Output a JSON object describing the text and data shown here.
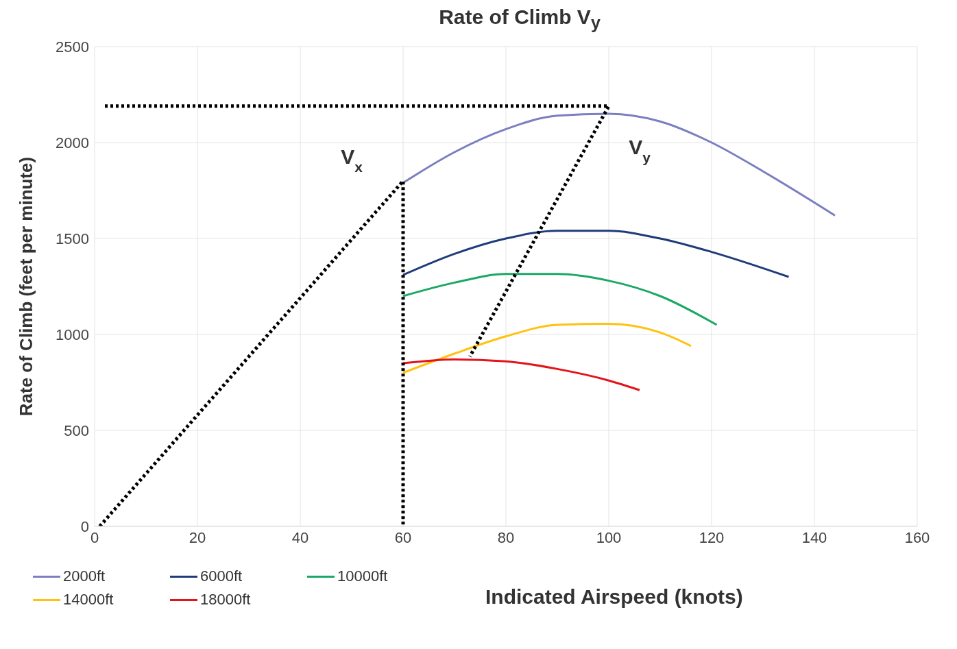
{
  "chart_data": {
    "type": "line",
    "title": "Rate of Climb V$_{y}$",
    "xlabel": "Indicated Airspeed (knots)",
    "ylabel": "Rate of Climb (feet per minute)",
    "xlim": [
      0,
      160
    ],
    "xticks": [
      0,
      20,
      40,
      60,
      80,
      100,
      120,
      140,
      160
    ],
    "ylim": [
      0,
      2500
    ],
    "yticks": [
      0,
      500,
      1000,
      1500,
      2000,
      2500
    ],
    "grid": true,
    "legend": "bottom",
    "marker": "none",
    "line_style": "solid",
    "annotations": [
      "V$_{x}$",
      "V$_{y}$"
    ],
    "series": [
      {
        "name": "2000ft",
        "color": "#7b7fc0",
        "x": [
          60,
          70,
          80,
          90,
          100,
          110,
          120,
          130,
          144
        ],
        "values": [
          1790,
          1950,
          2070,
          2140,
          2150,
          2110,
          2000,
          1850,
          1620
        ]
      },
      {
        "name": "6000ft",
        "color": "#1f3c7a",
        "x": [
          60,
          70,
          80,
          90,
          100,
          110,
          120,
          135
        ],
        "values": [
          1310,
          1420,
          1500,
          1540,
          1540,
          1500,
          1430,
          1300
        ]
      },
      {
        "name": "10000ft",
        "color": "#1aa865",
        "x": [
          60,
          70,
          80,
          90,
          100,
          110,
          121
        ],
        "values": [
          1200,
          1270,
          1315,
          1315,
          1280,
          1200,
          1050
        ]
      },
      {
        "name": "14000ft",
        "color": "#ffc20e",
        "x": [
          60,
          70,
          80,
          90,
          100,
          110,
          116
        ],
        "values": [
          800,
          900,
          990,
          1050,
          1055,
          1010,
          940
        ]
      },
      {
        "name": "18000ft",
        "color": "#e3141b",
        "x": [
          60,
          70,
          80,
          90,
          100,
          106
        ],
        "values": [
          850,
          870,
          860,
          820,
          760,
          710
        ]
      },
      {
        "color": "#000000",
        "line_style": "dotted",
        "x": [
          1,
          60,
          60
        ],
        "values": [
          0,
          1800,
          0
        ]
      },
      {
        "color": "#000000",
        "line_style": "dotted",
        "x": [
          2,
          100,
          73
        ],
        "values": [
          2190,
          2190,
          885
        ]
      }
    ]
  }
}
